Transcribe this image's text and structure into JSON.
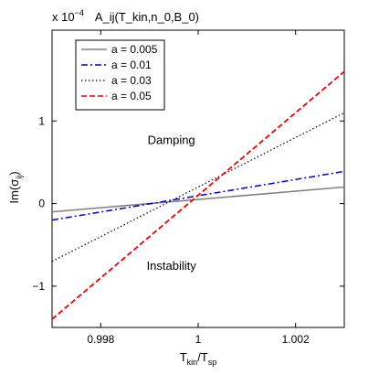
{
  "chart_data": {
    "type": "line",
    "title": "",
    "xlabel": "T_kin/T_sp",
    "ylabel": "Im(σ_ij)",
    "scale_note": "x 10^{-4}",
    "scale_factor_label": "x 10",
    "scale_exponent": "−4",
    "scale_suffix": "A_ij(T_kin,n_0,B_0)",
    "xlim": [
      0.997,
      1.003
    ],
    "ylim": [
      -1.5,
      2.1
    ],
    "xticks": [
      0.998,
      1,
      1.002
    ],
    "xtick_labels": [
      "0.998",
      "1",
      "1.002"
    ],
    "yticks": [
      -1,
      0,
      1
    ],
    "ytick_labels": [
      "−1",
      "0",
      "1"
    ],
    "grid": false,
    "legend_position": "top-left",
    "annotations": [
      {
        "text": "Damping",
        "x": 0.99945,
        "y": 0.72
      },
      {
        "text": "Instability",
        "x": 0.99945,
        "y": -0.8
      }
    ],
    "series": [
      {
        "name": "a = 0.005",
        "color": "#808080",
        "dash": "solid",
        "x": [
          0.997,
          1.003
        ],
        "y": [
          -0.1,
          0.2
        ]
      },
      {
        "name": "a = 0.01",
        "color": "#0000cc",
        "dash": "dashdot",
        "x": [
          0.997,
          1.003
        ],
        "y": [
          -0.2,
          0.39
        ]
      },
      {
        "name": "a = 0.03",
        "color": "#000000",
        "dash": "dotted",
        "x": [
          0.997,
          1.003
        ],
        "y": [
          -0.7,
          1.1
        ]
      },
      {
        "name": "a = 0.05",
        "color": "#ee0000",
        "dash": "dashed",
        "x": [
          0.997,
          1.003
        ],
        "y": [
          -1.4,
          1.6
        ]
      }
    ]
  }
}
